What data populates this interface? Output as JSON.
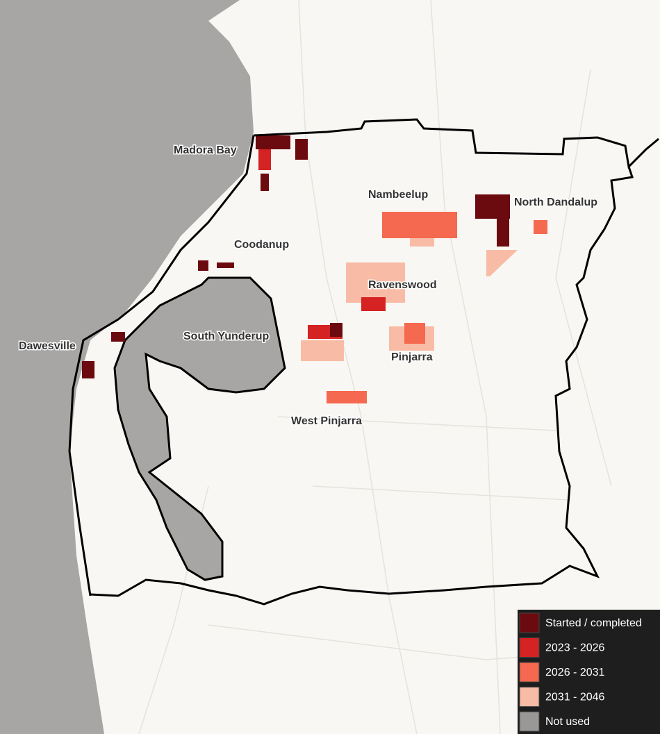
{
  "places": [
    {
      "label": "Madora Bay"
    },
    {
      "label": "Nambeelup"
    },
    {
      "label": "North Dandalup"
    },
    {
      "label": "Coodanup"
    },
    {
      "label": "Ravenswood"
    },
    {
      "label": "South Yunderup"
    },
    {
      "label": "Dawesville"
    },
    {
      "label": "Pinjarra"
    },
    {
      "label": "West Pinjarra"
    }
  ],
  "legend": {
    "items": [
      {
        "label": "Started / completed",
        "color": "#6b0a0f"
      },
      {
        "label": "2023 - 2026",
        "color": "#d42322"
      },
      {
        "label": "2026 - 2031",
        "color": "#f4694f"
      },
      {
        "label": "2031 - 2046",
        "color": "#f8bca6"
      },
      {
        "label": "Not used",
        "color": "#9a9896"
      }
    ]
  }
}
